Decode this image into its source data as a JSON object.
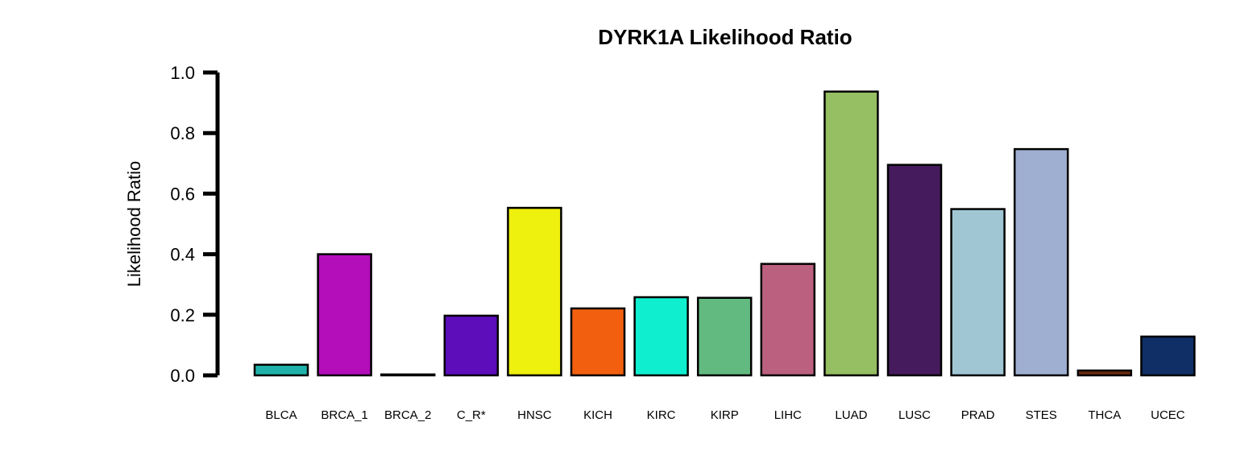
{
  "chart_data": {
    "type": "bar",
    "title": "DYRK1A Likelihood Ratio",
    "xlabel": "",
    "ylabel": "Likelihood Ratio",
    "ylim": [
      0,
      1.0
    ],
    "yticks": [
      "0.0",
      "0.2",
      "0.4",
      "0.6",
      "0.8",
      "1.0"
    ],
    "grid": false,
    "categories": [
      "BLCA",
      "BRCA_1",
      "BRCA_2",
      "C_R*",
      "HNSC",
      "KICH",
      "KIRC",
      "KIRP",
      "LIHC",
      "LUAD",
      "LUSC",
      "PRAD",
      "STES",
      "THCA",
      "UCEC"
    ],
    "values": [
      0.035,
      0.4,
      0.003,
      0.197,
      0.553,
      0.221,
      0.258,
      0.256,
      0.368,
      0.937,
      0.695,
      0.549,
      0.747,
      0.016,
      0.128
    ],
    "colors": [
      "#20B2AA",
      "#B40DBA",
      "#2E8B57",
      "#5E0DBA",
      "#EEF00D",
      "#F2600F",
      "#0FEFD0",
      "#62BA80",
      "#BC6080",
      "#96BE62",
      "#461B5E",
      "#A0C6D3",
      "#9FAFD2",
      "#6B2A10",
      "#0F2F66"
    ]
  }
}
